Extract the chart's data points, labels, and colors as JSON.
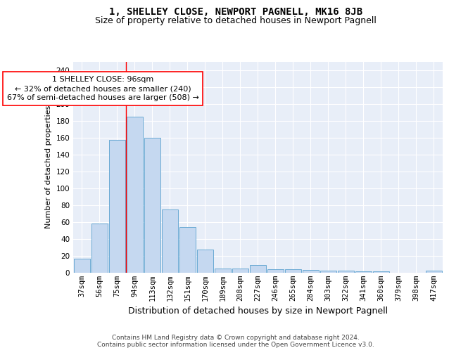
{
  "title": "1, SHELLEY CLOSE, NEWPORT PAGNELL, MK16 8JB",
  "subtitle": "Size of property relative to detached houses in Newport Pagnell",
  "xlabel": "Distribution of detached houses by size in Newport Pagnell",
  "ylabel": "Number of detached properties",
  "categories": [
    "37sqm",
    "56sqm",
    "75sqm",
    "94sqm",
    "113sqm",
    "132sqm",
    "151sqm",
    "170sqm",
    "189sqm",
    "208sqm",
    "227sqm",
    "246sqm",
    "265sqm",
    "284sqm",
    "303sqm",
    "322sqm",
    "341sqm",
    "360sqm",
    "379sqm",
    "398sqm",
    "417sqm"
  ],
  "values": [
    16,
    58,
    157,
    185,
    160,
    75,
    54,
    27,
    5,
    5,
    9,
    4,
    4,
    3,
    2,
    2,
    1,
    1,
    0,
    0,
    2
  ],
  "bar_color": "#c5d8f0",
  "bar_edge_color": "#6aaad4",
  "annotation_text": "1 SHELLEY CLOSE: 96sqm\n← 32% of detached houses are smaller (240)\n67% of semi-detached houses are larger (508) →",
  "vline_x": 3.5,
  "ylim": [
    0,
    250
  ],
  "yticks": [
    0,
    20,
    40,
    60,
    80,
    100,
    120,
    140,
    160,
    180,
    200,
    220,
    240
  ],
  "background_color": "#e8eef8",
  "grid_color": "#ffffff",
  "footer": "Contains HM Land Registry data © Crown copyright and database right 2024.\nContains public sector information licensed under the Open Government Licence v3.0.",
  "title_fontsize": 10,
  "subtitle_fontsize": 9,
  "ylabel_fontsize": 8,
  "xlabel_fontsize": 9,
  "footer_fontsize": 6.5,
  "tick_fontsize": 7.5,
  "annotation_fontsize": 8
}
